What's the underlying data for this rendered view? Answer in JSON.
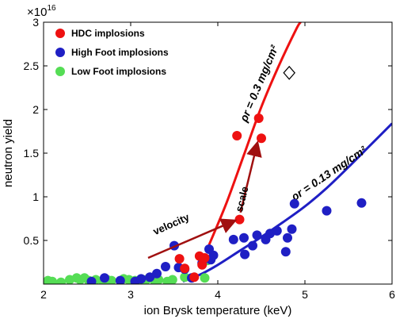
{
  "chart_data": {
    "type": "scatter",
    "xlabel": "ion Brysk temperature (keV)",
    "ylabel": "neutron yield",
    "y_multiplier_label": "×10",
    "y_multiplier_exp": "16",
    "xlim": [
      2,
      6
    ],
    "ylim": [
      0,
      3
    ],
    "xticks": [
      "2",
      "3",
      "4",
      "5",
      "6"
    ],
    "yticks": [
      "0.5",
      "1",
      "1.5",
      "2",
      "2.5",
      "3"
    ],
    "xtick_values": [
      2,
      3,
      4,
      5,
      6
    ],
    "ytick_values": [
      0.5,
      1,
      1.5,
      2,
      2.5,
      3
    ],
    "grid": false,
    "legend_position": "top-left",
    "series": [
      {
        "name": "HDC implosions",
        "color": "#ee1111",
        "points": [
          [
            3.56,
            0.29
          ],
          [
            3.62,
            0.18
          ],
          [
            3.73,
            0.08
          ],
          [
            3.79,
            0.32
          ],
          [
            3.82,
            0.22
          ],
          [
            3.85,
            0.3
          ],
          [
            4.22,
            1.7
          ],
          [
            4.25,
            0.74
          ],
          [
            4.47,
            1.9
          ],
          [
            4.5,
            1.67
          ]
        ]
      },
      {
        "name": "High Foot implosions",
        "color": "#1f1fc4",
        "points": [
          [
            2.55,
            0.03
          ],
          [
            2.7,
            0.07
          ],
          [
            2.88,
            0.04
          ],
          [
            3.05,
            0.03
          ],
          [
            3.12,
            0.06
          ],
          [
            3.22,
            0.08
          ],
          [
            3.3,
            0.12
          ],
          [
            3.4,
            0.2
          ],
          [
            3.5,
            0.44
          ],
          [
            3.55,
            0.19
          ],
          [
            3.62,
            0.17
          ],
          [
            3.7,
            0.07
          ],
          [
            3.82,
            0.24
          ],
          [
            3.9,
            0.4
          ],
          [
            3.92,
            0.28
          ],
          [
            3.95,
            0.33
          ],
          [
            4.18,
            0.51
          ],
          [
            4.3,
            0.53
          ],
          [
            4.31,
            0.34
          ],
          [
            4.4,
            0.44
          ],
          [
            4.45,
            0.56
          ],
          [
            4.55,
            0.51
          ],
          [
            4.6,
            0.58
          ],
          [
            4.68,
            0.61
          ],
          [
            4.78,
            0.37
          ],
          [
            4.8,
            0.53
          ],
          [
            4.85,
            0.63
          ],
          [
            4.88,
            0.92
          ],
          [
            5.25,
            0.84
          ],
          [
            5.65,
            0.93
          ]
        ]
      },
      {
        "name": "Low Foot implosions",
        "color": "#55dd55",
        "points": [
          [
            2.05,
            0.04
          ],
          [
            2.1,
            0.03
          ],
          [
            2.2,
            0.02
          ],
          [
            2.3,
            0.05
          ],
          [
            2.38,
            0.07
          ],
          [
            2.42,
            0.05
          ],
          [
            2.47,
            0.07
          ],
          [
            2.52,
            0.04
          ],
          [
            2.6,
            0.05
          ],
          [
            2.68,
            0.04
          ],
          [
            2.73,
            0.05
          ],
          [
            2.78,
            0.04
          ],
          [
            2.92,
            0.06
          ],
          [
            2.98,
            0.05
          ],
          [
            3.05,
            0.04
          ],
          [
            3.1,
            0.02
          ],
          [
            3.18,
            0.05
          ],
          [
            3.28,
            0.02
          ],
          [
            3.32,
            0.05
          ],
          [
            3.42,
            0.03
          ],
          [
            3.48,
            0.05
          ],
          [
            3.62,
            0.08
          ],
          [
            3.85,
            0.07
          ],
          [
            3.88,
            0.27
          ]
        ]
      }
    ],
    "curves": [
      {
        "label": "ρr = 0.3 mg/cm²",
        "color": "#ee1111",
        "points": [
          [
            3.9,
            0.45
          ],
          [
            4.1,
            0.93
          ],
          [
            4.3,
            1.48
          ],
          [
            4.5,
            2.03
          ],
          [
            4.7,
            2.5
          ],
          [
            4.9,
            2.92
          ],
          [
            4.95,
            3.0
          ]
        ]
      },
      {
        "label": "ρr = 0.13 mg/cm²",
        "color": "#1f1fc4",
        "points": [
          [
            3.6,
            0.03
          ],
          [
            3.8,
            0.11
          ],
          [
            4.0,
            0.22
          ],
          [
            4.25,
            0.38
          ],
          [
            4.5,
            0.54
          ],
          [
            4.75,
            0.71
          ],
          [
            5.0,
            0.89
          ],
          [
            5.25,
            1.1
          ],
          [
            5.5,
            1.34
          ],
          [
            5.75,
            1.59
          ],
          [
            6.0,
            1.84
          ]
        ]
      }
    ],
    "annotations": {
      "velocity_label": "velocity",
      "scale_label": "scale",
      "arrow_color": "#a01010",
      "diamond_point": [
        4.82,
        2.42
      ]
    }
  }
}
